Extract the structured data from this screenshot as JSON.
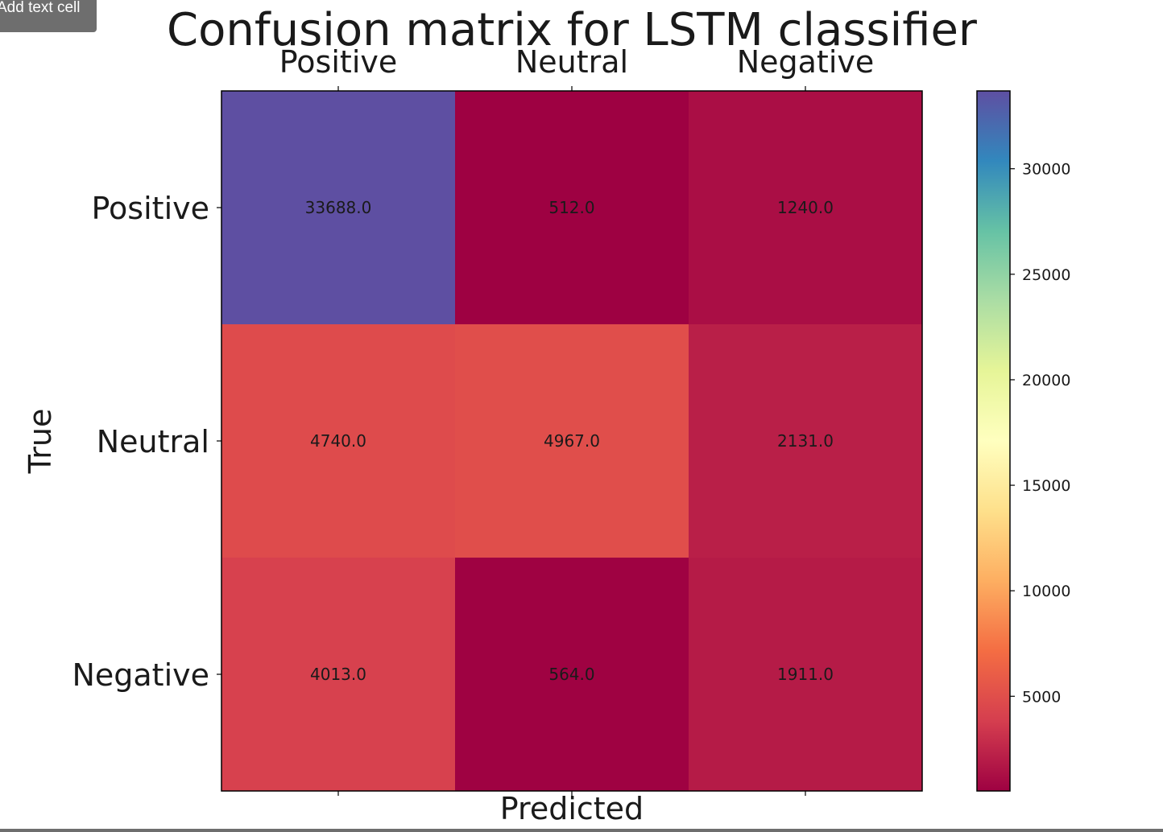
{
  "tooltip": {
    "label": "Add text cell"
  },
  "chart_data": {
    "type": "heatmap",
    "title": "Confusion matrix for LSTM classifier",
    "xlabel": "Predicted",
    "ylabel": "True",
    "x_categories": [
      "Positive",
      "Neutral",
      "Negative"
    ],
    "y_categories": [
      "Positive",
      "Neutral",
      "Negative"
    ],
    "cell_labels": [
      [
        "33688.0",
        "512.0",
        "1240.0"
      ],
      [
        "4740.0",
        "4967.0",
        "2131.0"
      ],
      [
        "4013.0",
        "564.0",
        "1911.0"
      ]
    ],
    "values": [
      [
        33688,
        512,
        1240
      ],
      [
        4740,
        4967,
        2131
      ],
      [
        4013,
        564,
        1911
      ]
    ],
    "colormap": "Spectral",
    "colorbar": {
      "vmin": 512,
      "vmax": 33688,
      "ticks": [
        5000,
        10000,
        15000,
        20000,
        25000,
        30000
      ],
      "tick_labels": [
        "5000",
        "10000",
        "15000",
        "20000",
        "25000",
        "30000"
      ]
    },
    "grid": false,
    "legend": "colorbar right"
  },
  "colors": {
    "text": "#1a1a1a",
    "tooltip_bg": "#6e6e6e"
  }
}
